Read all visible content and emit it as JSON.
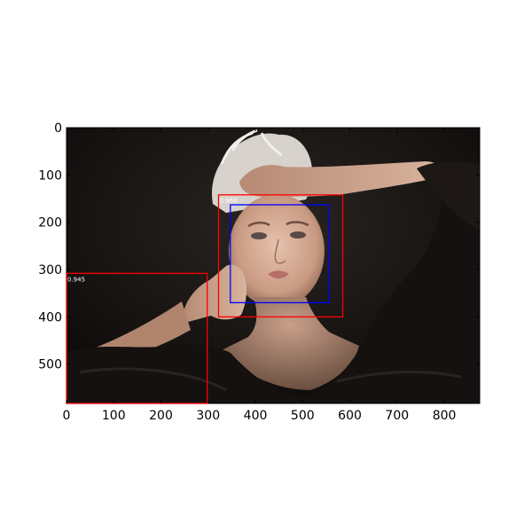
{
  "chart_data": {
    "type": "image_with_detections",
    "title": "",
    "xlabel": "",
    "ylabel": "",
    "xlim": [
      0,
      875
    ],
    "ylim": [
      583,
      0
    ],
    "x_ticks": [
      0,
      100,
      200,
      300,
      400,
      500,
      600,
      700,
      800
    ],
    "y_ticks": [
      0,
      100,
      200,
      300,
      400,
      500
    ],
    "detections": [
      {
        "score": "0.960",
        "x0": 322,
        "y0": 142,
        "x1": 585,
        "y1": 400,
        "color": "#ff0000"
      },
      {
        "score": "",
        "x0": 347,
        "y0": 163,
        "x1": 556,
        "y1": 370,
        "color": "#0000ff"
      },
      {
        "score": "0.945",
        "x0": 0,
        "y0": 308,
        "x1": 298,
        "y1": 583,
        "color": "#ff0000"
      }
    ]
  }
}
